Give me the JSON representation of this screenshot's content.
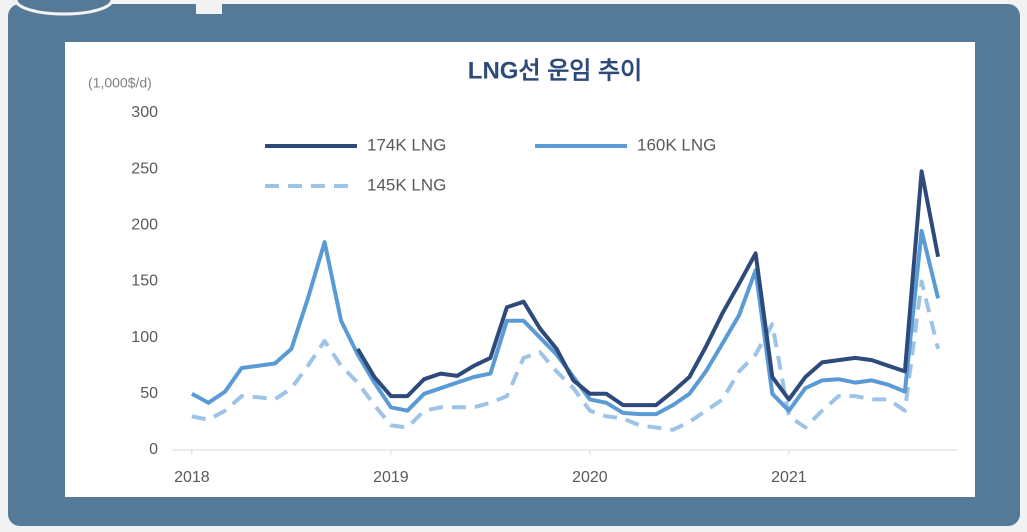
{
  "chart_data": {
    "type": "line",
    "title": "LNG선 운임 추이",
    "y_axis_label": "(1,000$/d)",
    "x": [
      2018,
      2018.083,
      2018.167,
      2018.25,
      2018.333,
      2018.417,
      2018.5,
      2018.583,
      2018.667,
      2018.75,
      2018.833,
      2018.917,
      2019,
      2019.083,
      2019.167,
      2019.25,
      2019.333,
      2019.417,
      2019.5,
      2019.583,
      2019.667,
      2019.75,
      2019.833,
      2019.917,
      2020,
      2020.083,
      2020.167,
      2020.25,
      2020.333,
      2020.417,
      2020.5,
      2020.583,
      2020.667,
      2020.75,
      2020.833,
      2020.917,
      2021,
      2021.083,
      2021.167,
      2021.25,
      2021.333,
      2021.417,
      2021.5,
      2021.583,
      2021.667,
      2021.75
    ],
    "series": [
      {
        "name": "174K LNG",
        "color": "#2e4a7a",
        "dashed": false,
        "values": [
          null,
          null,
          null,
          null,
          null,
          null,
          null,
          null,
          null,
          null,
          90,
          65,
          48,
          48,
          63,
          68,
          66,
          75,
          82,
          127,
          132,
          108,
          90,
          62,
          50,
          50,
          40,
          40,
          40,
          52,
          65,
          92,
          122,
          148,
          175,
          65,
          45,
          65,
          78,
          80,
          82,
          80,
          75,
          70,
          248,
          172
        ]
      },
      {
        "name": "160K LNG",
        "color": "#5b9bd5",
        "dashed": false,
        "values": [
          50,
          42,
          52,
          73,
          75,
          77,
          90,
          135,
          185,
          115,
          85,
          60,
          38,
          35,
          50,
          55,
          60,
          65,
          68,
          115,
          115,
          100,
          85,
          65,
          45,
          42,
          33,
          32,
          32,
          40,
          50,
          70,
          95,
          120,
          160,
          50,
          35,
          55,
          62,
          63,
          60,
          62,
          58,
          52,
          195,
          135
        ]
      },
      {
        "name": "145K LNG",
        "color": "#9dc3e6",
        "dashed": true,
        "values": [
          30,
          27,
          35,
          48,
          47,
          45,
          55,
          75,
          97,
          75,
          60,
          40,
          22,
          20,
          35,
          38,
          38,
          38,
          42,
          48,
          82,
          87,
          70,
          55,
          35,
          30,
          28,
          22,
          20,
          18,
          25,
          35,
          45,
          70,
          85,
          112,
          30,
          20,
          35,
          48,
          48,
          45,
          45,
          35,
          150,
          90
        ]
      }
    ],
    "xlim": [
      2017.9,
      2021.85
    ],
    "xticks": [
      2018,
      2019,
      2020,
      2021
    ],
    "ylim": [
      0,
      300
    ],
    "yticks": [
      0,
      50,
      100,
      150,
      200,
      250,
      300
    ],
    "grid": false
  }
}
